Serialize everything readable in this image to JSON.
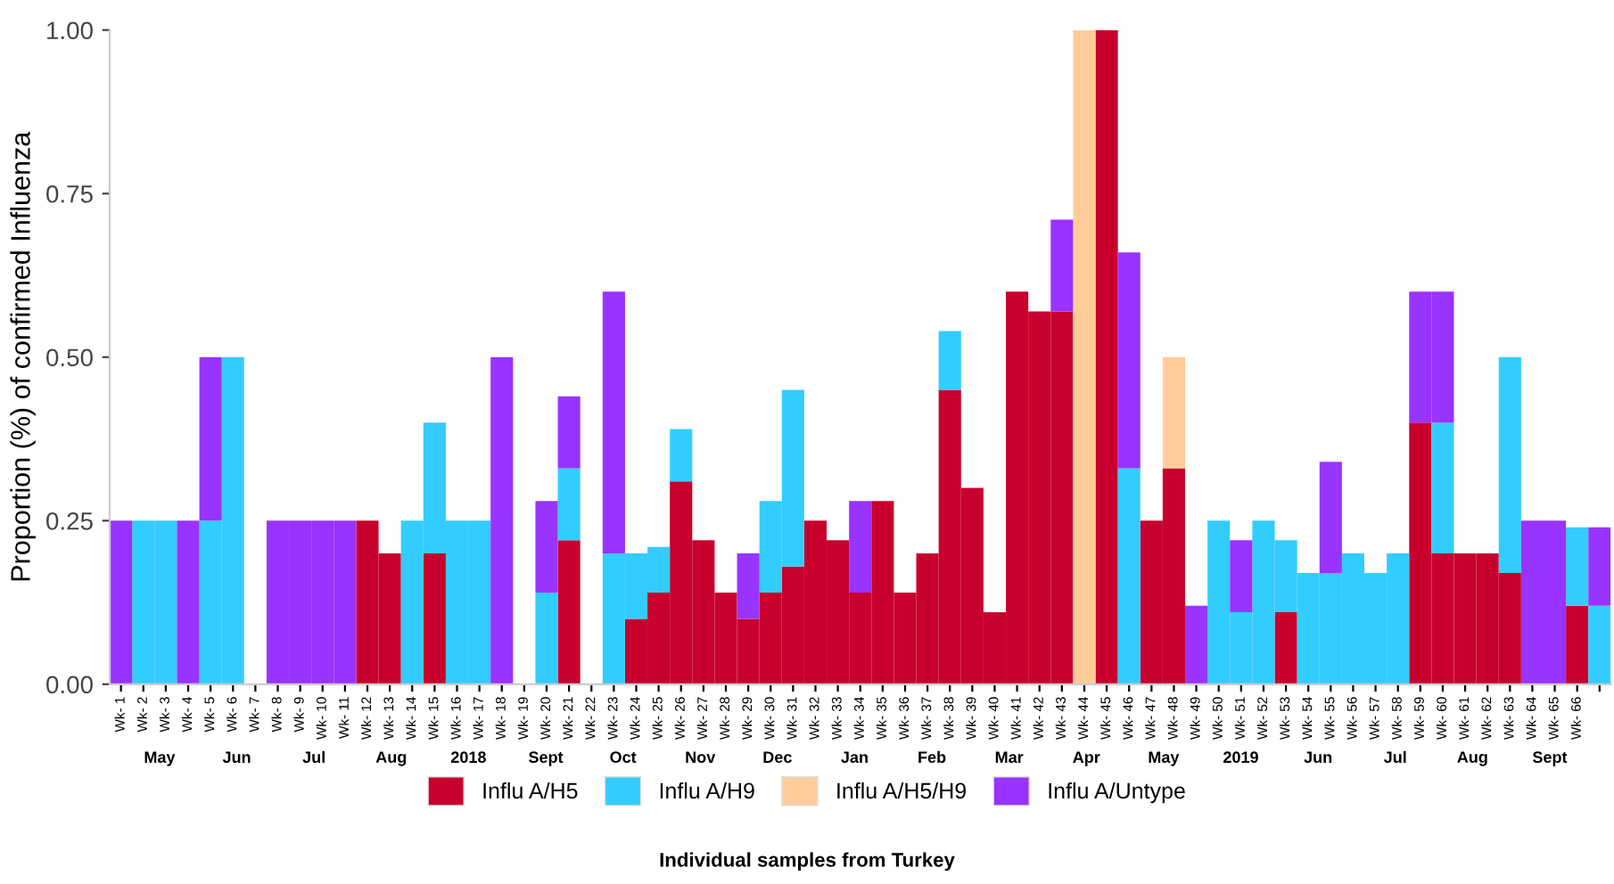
{
  "chart_data": {
    "type": "bar",
    "stacked": true,
    "ylabel": "Proportion (%) of confirmed Influenza",
    "categories": [
      "Wk- 1",
      "Wk- 2",
      "Wk- 3",
      "Wk- 4",
      "Wk- 5",
      "Wk- 6",
      "Wk- 7",
      "Wk- 8",
      "Wk- 9",
      "Wk- 10",
      "Wk- 11",
      "Wk- 12",
      "Wk- 13",
      "Wk- 14",
      "Wk- 15",
      "Wk- 16",
      "Wk- 17",
      "Wk- 18",
      "Wk- 19",
      "Wk- 20",
      "Wk- 21",
      "Wk- 22",
      "Wk- 23",
      "Wk- 24",
      "Wk- 25",
      "Wk- 26",
      "Wk- 27",
      "Wk- 28",
      "Wk- 29",
      "Wk- 30",
      "Wk- 31",
      "Wk- 32",
      "Wk- 33",
      "Wk- 34",
      "Wk- 35",
      "Wk- 36",
      "Wk- 37",
      "Wk- 38",
      "Wk- 39",
      "Wk- 40",
      "Wk- 41",
      "Wk- 42",
      "Wk- 43",
      "Wk- 44",
      "Wk- 45",
      "Wk- 46",
      "Wk- 47",
      "Wk- 48",
      "Wk- 49",
      "Wk- 50",
      "Wk- 51",
      "Wk- 52",
      "Wk- 53",
      "Wk- 54",
      "Wk- 55",
      "Wk- 56",
      "Wk- 57",
      "Wk- 58",
      "Wk- 59",
      "Wk- 60",
      "Wk- 61",
      "Wk- 62",
      "Wk- 63",
      "Wk- 64",
      "Wk- 65",
      "Wk- 66",
      null
    ],
    "series": [
      {
        "name": "Influ A/H5",
        "color": "#c8002d",
        "values": [
          0,
          0,
          0,
          0,
          0,
          0,
          0,
          0,
          0,
          0,
          0,
          0.25,
          0.2,
          0,
          0.2,
          0,
          0,
          0,
          0,
          0,
          0.22,
          0,
          0,
          0.1,
          0.14,
          0.31,
          0.22,
          0.14,
          0.1,
          0.14,
          0.18,
          0.25,
          0.22,
          0.14,
          0.28,
          0.14,
          0.2,
          0.45,
          0.3,
          0.11,
          0.6,
          0.57,
          0.57,
          0,
          1,
          0,
          0.25,
          0.33,
          0,
          0,
          0,
          0,
          0.11,
          0,
          0,
          0,
          0,
          0,
          0.4,
          0.2,
          0.2,
          0.2,
          0.17,
          0,
          0,
          0.12,
          0
        ]
      },
      {
        "name": "Influ A/H9",
        "color": "#33ccff",
        "values": [
          0,
          0.25,
          0.25,
          0,
          0.25,
          0.5,
          0,
          0,
          0,
          0,
          0,
          0,
          0,
          0.25,
          0.2,
          0.25,
          0.25,
          0,
          0,
          0.14,
          0.11,
          0,
          0.2,
          0.1,
          0.07,
          0.08,
          0,
          0,
          0,
          0.14,
          0.27,
          0,
          0,
          0,
          0,
          0,
          0,
          0.09,
          0,
          0,
          0,
          0,
          0,
          0,
          0,
          0.33,
          0,
          0,
          0,
          0.25,
          0.11,
          0.25,
          0.11,
          0.17,
          0.17,
          0.2,
          0.17,
          0.2,
          0,
          0.2,
          0,
          0,
          0.33,
          0,
          0,
          0.12,
          0.12
        ]
      },
      {
        "name": "Influ A/H5/H9",
        "color": "#ffcc99",
        "values": [
          0,
          0,
          0,
          0,
          0,
          0,
          0,
          0,
          0,
          0,
          0,
          0,
          0,
          0,
          0,
          0,
          0,
          0,
          0,
          0,
          0,
          0,
          0,
          0,
          0,
          0,
          0,
          0,
          0,
          0,
          0,
          0,
          0,
          0,
          0,
          0,
          0,
          0,
          0,
          0,
          0,
          0,
          0,
          1,
          0,
          0,
          0,
          0.17,
          0,
          0,
          0,
          0,
          0,
          0,
          0,
          0,
          0,
          0,
          0,
          0,
          0,
          0,
          0,
          0,
          0,
          0,
          0
        ]
      },
      {
        "name": "Influ A/Untype",
        "color": "#9933ff",
        "values": [
          0.25,
          0,
          0,
          0.25,
          0.25,
          0,
          0,
          0.25,
          0.25,
          0.25,
          0.25,
          0,
          0,
          0,
          0,
          0,
          0,
          0.5,
          0,
          0.14,
          0.11,
          0,
          0.4,
          0,
          0,
          0,
          0,
          0,
          0.1,
          0,
          0,
          0,
          0,
          0.14,
          0,
          0,
          0,
          0,
          0,
          0,
          0,
          0,
          0.14,
          0,
          0,
          0.33,
          0,
          0,
          0.12,
          0,
          0.11,
          0,
          0,
          0,
          0.17,
          0,
          0,
          0,
          0.2,
          0.2,
          0,
          0,
          0,
          0.25,
          0.25,
          0,
          0.12
        ]
      }
    ],
    "ylim": [
      0,
      1
    ],
    "yticks": [
      {
        "value": 0,
        "label": "0.00"
      },
      {
        "value": 0.25,
        "label": "0.25"
      },
      {
        "value": 0.5,
        "label": "0.50"
      },
      {
        "value": 0.75,
        "label": "0.75"
      },
      {
        "value": 1,
        "label": "1.00"
      }
    ],
    "grid": false,
    "legend": "bottom",
    "annotations": [
      "May",
      "Jun",
      "Jul",
      "Aug",
      "2018",
      "Sept",
      "Oct",
      "Nov",
      "Dec",
      "Jan",
      "Feb",
      "Mar",
      "Apr",
      "May",
      "2019",
      "Jun",
      "Jul",
      "Aug",
      "Sept",
      "Individual samples from Turkey"
    ]
  }
}
